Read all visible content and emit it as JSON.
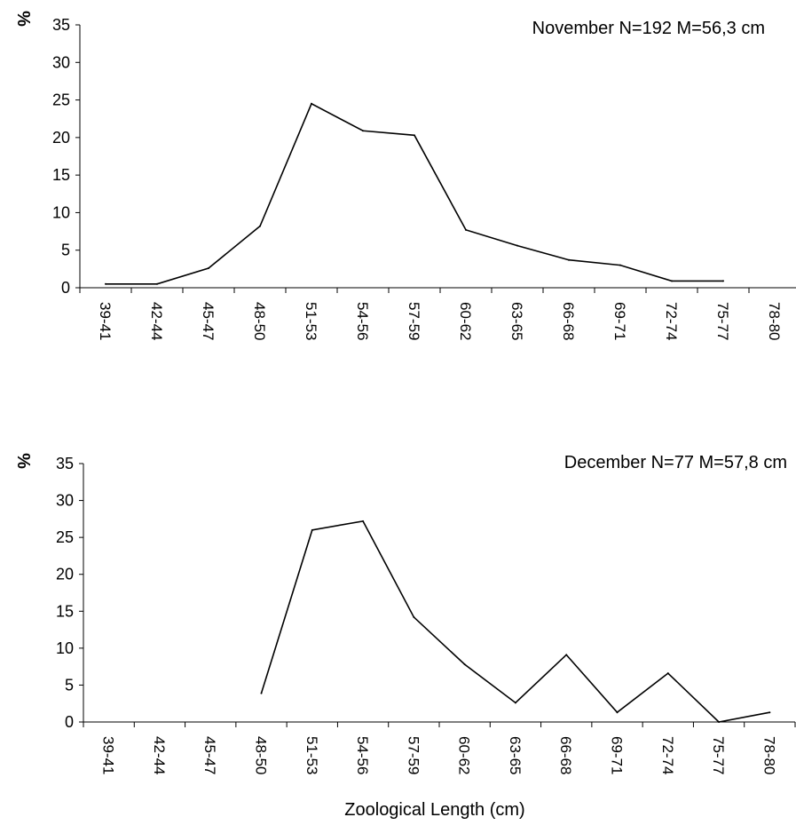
{
  "chart_data": [
    {
      "type": "line",
      "title": "",
      "annotation": "November N=192 M=56,3 cm",
      "ylabel": "%",
      "xlabel": "",
      "ylim": [
        0,
        35
      ],
      "yticks": [
        0,
        5,
        10,
        15,
        20,
        25,
        30,
        35
      ],
      "categories": [
        "39-41",
        "42-44",
        "45-47",
        "48-50",
        "51-53",
        "54-56",
        "57-59",
        "60-62",
        "63-65",
        "66-68",
        "69-71",
        "72-74",
        "75-77",
        "78-80"
      ],
      "series": [
        {
          "values": [
            0.5,
            0.5,
            2.6,
            8.2,
            24.5,
            20.9,
            20.3,
            7.7,
            5.6,
            3.7,
            3.0,
            0.9,
            0.9,
            null
          ]
        }
      ]
    },
    {
      "type": "line",
      "title": "",
      "annotation": "December N=77 M=57,8 cm",
      "ylabel": "%",
      "xlabel": "Zoological Length (cm)",
      "ylim": [
        0,
        35
      ],
      "yticks": [
        0,
        5,
        10,
        15,
        20,
        25,
        30,
        35
      ],
      "categories": [
        "39-41",
        "42-44",
        "45-47",
        "48-50",
        "51-53",
        "54-56",
        "57-59",
        "60-62",
        "63-65",
        "66-68",
        "69-71",
        "72-74",
        "75-77",
        "78-80"
      ],
      "series": [
        {
          "values": [
            null,
            null,
            null,
            3.9,
            26.0,
            27.2,
            14.2,
            7.8,
            2.6,
            9.1,
            1.3,
            6.6,
            0.0,
            1.3
          ]
        }
      ]
    }
  ]
}
